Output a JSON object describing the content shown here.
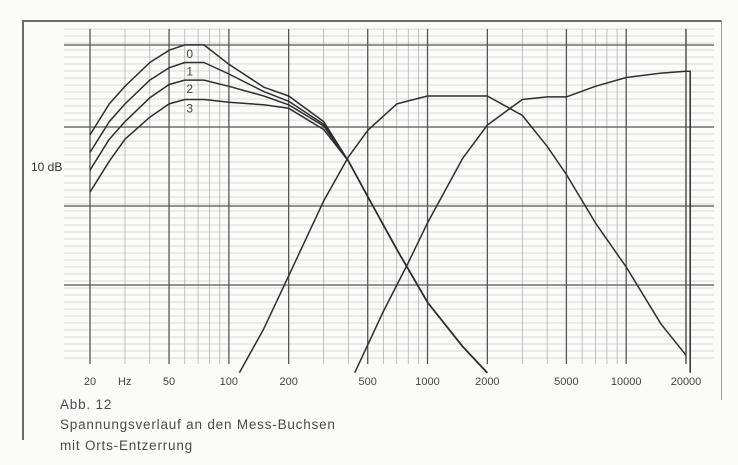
{
  "caption": {
    "figure": "Abb. 12",
    "line1": "Spannungsverlauf an den Mess-Buchsen",
    "line2": "mit Orts-Entzerrung"
  },
  "chart_data": {
    "type": "line",
    "x_scale": "log",
    "xlim": [
      20,
      20000
    ],
    "x_ticks": [
      20,
      50,
      100,
      200,
      500,
      1000,
      2000,
      5000,
      10000,
      20000
    ],
    "x_tick_labels": [
      "20",
      "50",
      "100",
      "200",
      "500",
      "1000",
      "2000",
      "5000",
      "10000",
      "20000"
    ],
    "x_unit_label": "Hz",
    "y_label": "10 dB",
    "ylim": [
      -34,
      4
    ],
    "grid": true,
    "series": [
      {
        "name": "0",
        "x": [
          20,
          25,
          30,
          40,
          50,
          60,
          75,
          100,
          150,
          200,
          300,
          400,
          500,
          700,
          1000,
          1500,
          2000
        ],
        "y": [
          -8,
          -4.5,
          -2.5,
          0.2,
          1.6,
          2.2,
          2.2,
          0,
          -2.6,
          -3.6,
          -6.5,
          -11,
          -15,
          -21,
          -27,
          -32,
          -35
        ]
      },
      {
        "name": "1",
        "x": [
          20,
          25,
          30,
          40,
          50,
          60,
          75,
          100,
          150,
          200,
          300,
          400,
          500,
          700,
          1000,
          1500,
          2000
        ],
        "y": [
          -10,
          -6.5,
          -4.5,
          -1.8,
          -0.4,
          0.2,
          0.2,
          -1.1,
          -3.1,
          -4.2,
          -6.8,
          -11,
          -15,
          -21,
          -27,
          -32,
          -35
        ]
      },
      {
        "name": "2",
        "x": [
          20,
          25,
          30,
          40,
          50,
          60,
          75,
          100,
          150,
          200,
          300,
          400,
          500,
          700,
          1000,
          1500,
          2000
        ],
        "y": [
          -12,
          -8.5,
          -6.5,
          -3.8,
          -2.3,
          -1.8,
          -1.8,
          -2.5,
          -3.6,
          -4.6,
          -7,
          -11,
          -15,
          -21,
          -27,
          -32,
          -35
        ]
      },
      {
        "name": "3",
        "x": [
          20,
          25,
          30,
          40,
          50,
          60,
          75,
          100,
          150,
          200,
          300,
          400,
          500,
          700,
          1000,
          1500,
          2000
        ],
        "y": [
          -14.5,
          -11,
          -8.5,
          -6,
          -4.5,
          -4,
          -4,
          -4.3,
          -4.6,
          -5,
          -7.4,
          -11,
          -15,
          -21,
          -27,
          -32,
          -35
        ]
      },
      {
        "x": [
          113,
          150,
          200,
          300,
          400,
          500,
          700,
          1000,
          1500,
          2000,
          3000,
          4000,
          5000,
          7000,
          10000,
          15000,
          20000
        ],
        "y": [
          -35,
          -30,
          -24,
          -15.5,
          -10.5,
          -7.5,
          -4.5,
          -3.6,
          -3.6,
          -3.6,
          -5.8,
          -9.3,
          -12.5,
          -18,
          -23,
          -29.5,
          -33
        ]
      },
      {
        "x": [
          430,
          600,
          800,
          1000,
          1500,
          2000,
          3000,
          4000,
          5000,
          7000,
          10000,
          15000,
          20000,
          21000,
          21000
        ],
        "y": [
          -35,
          -28,
          -22.5,
          -18,
          -10.7,
          -6.9,
          -4,
          -3.7,
          -3.7,
          -2.5,
          -1.5,
          -1,
          -0.8,
          -0.8,
          -35
        ]
      }
    ]
  }
}
